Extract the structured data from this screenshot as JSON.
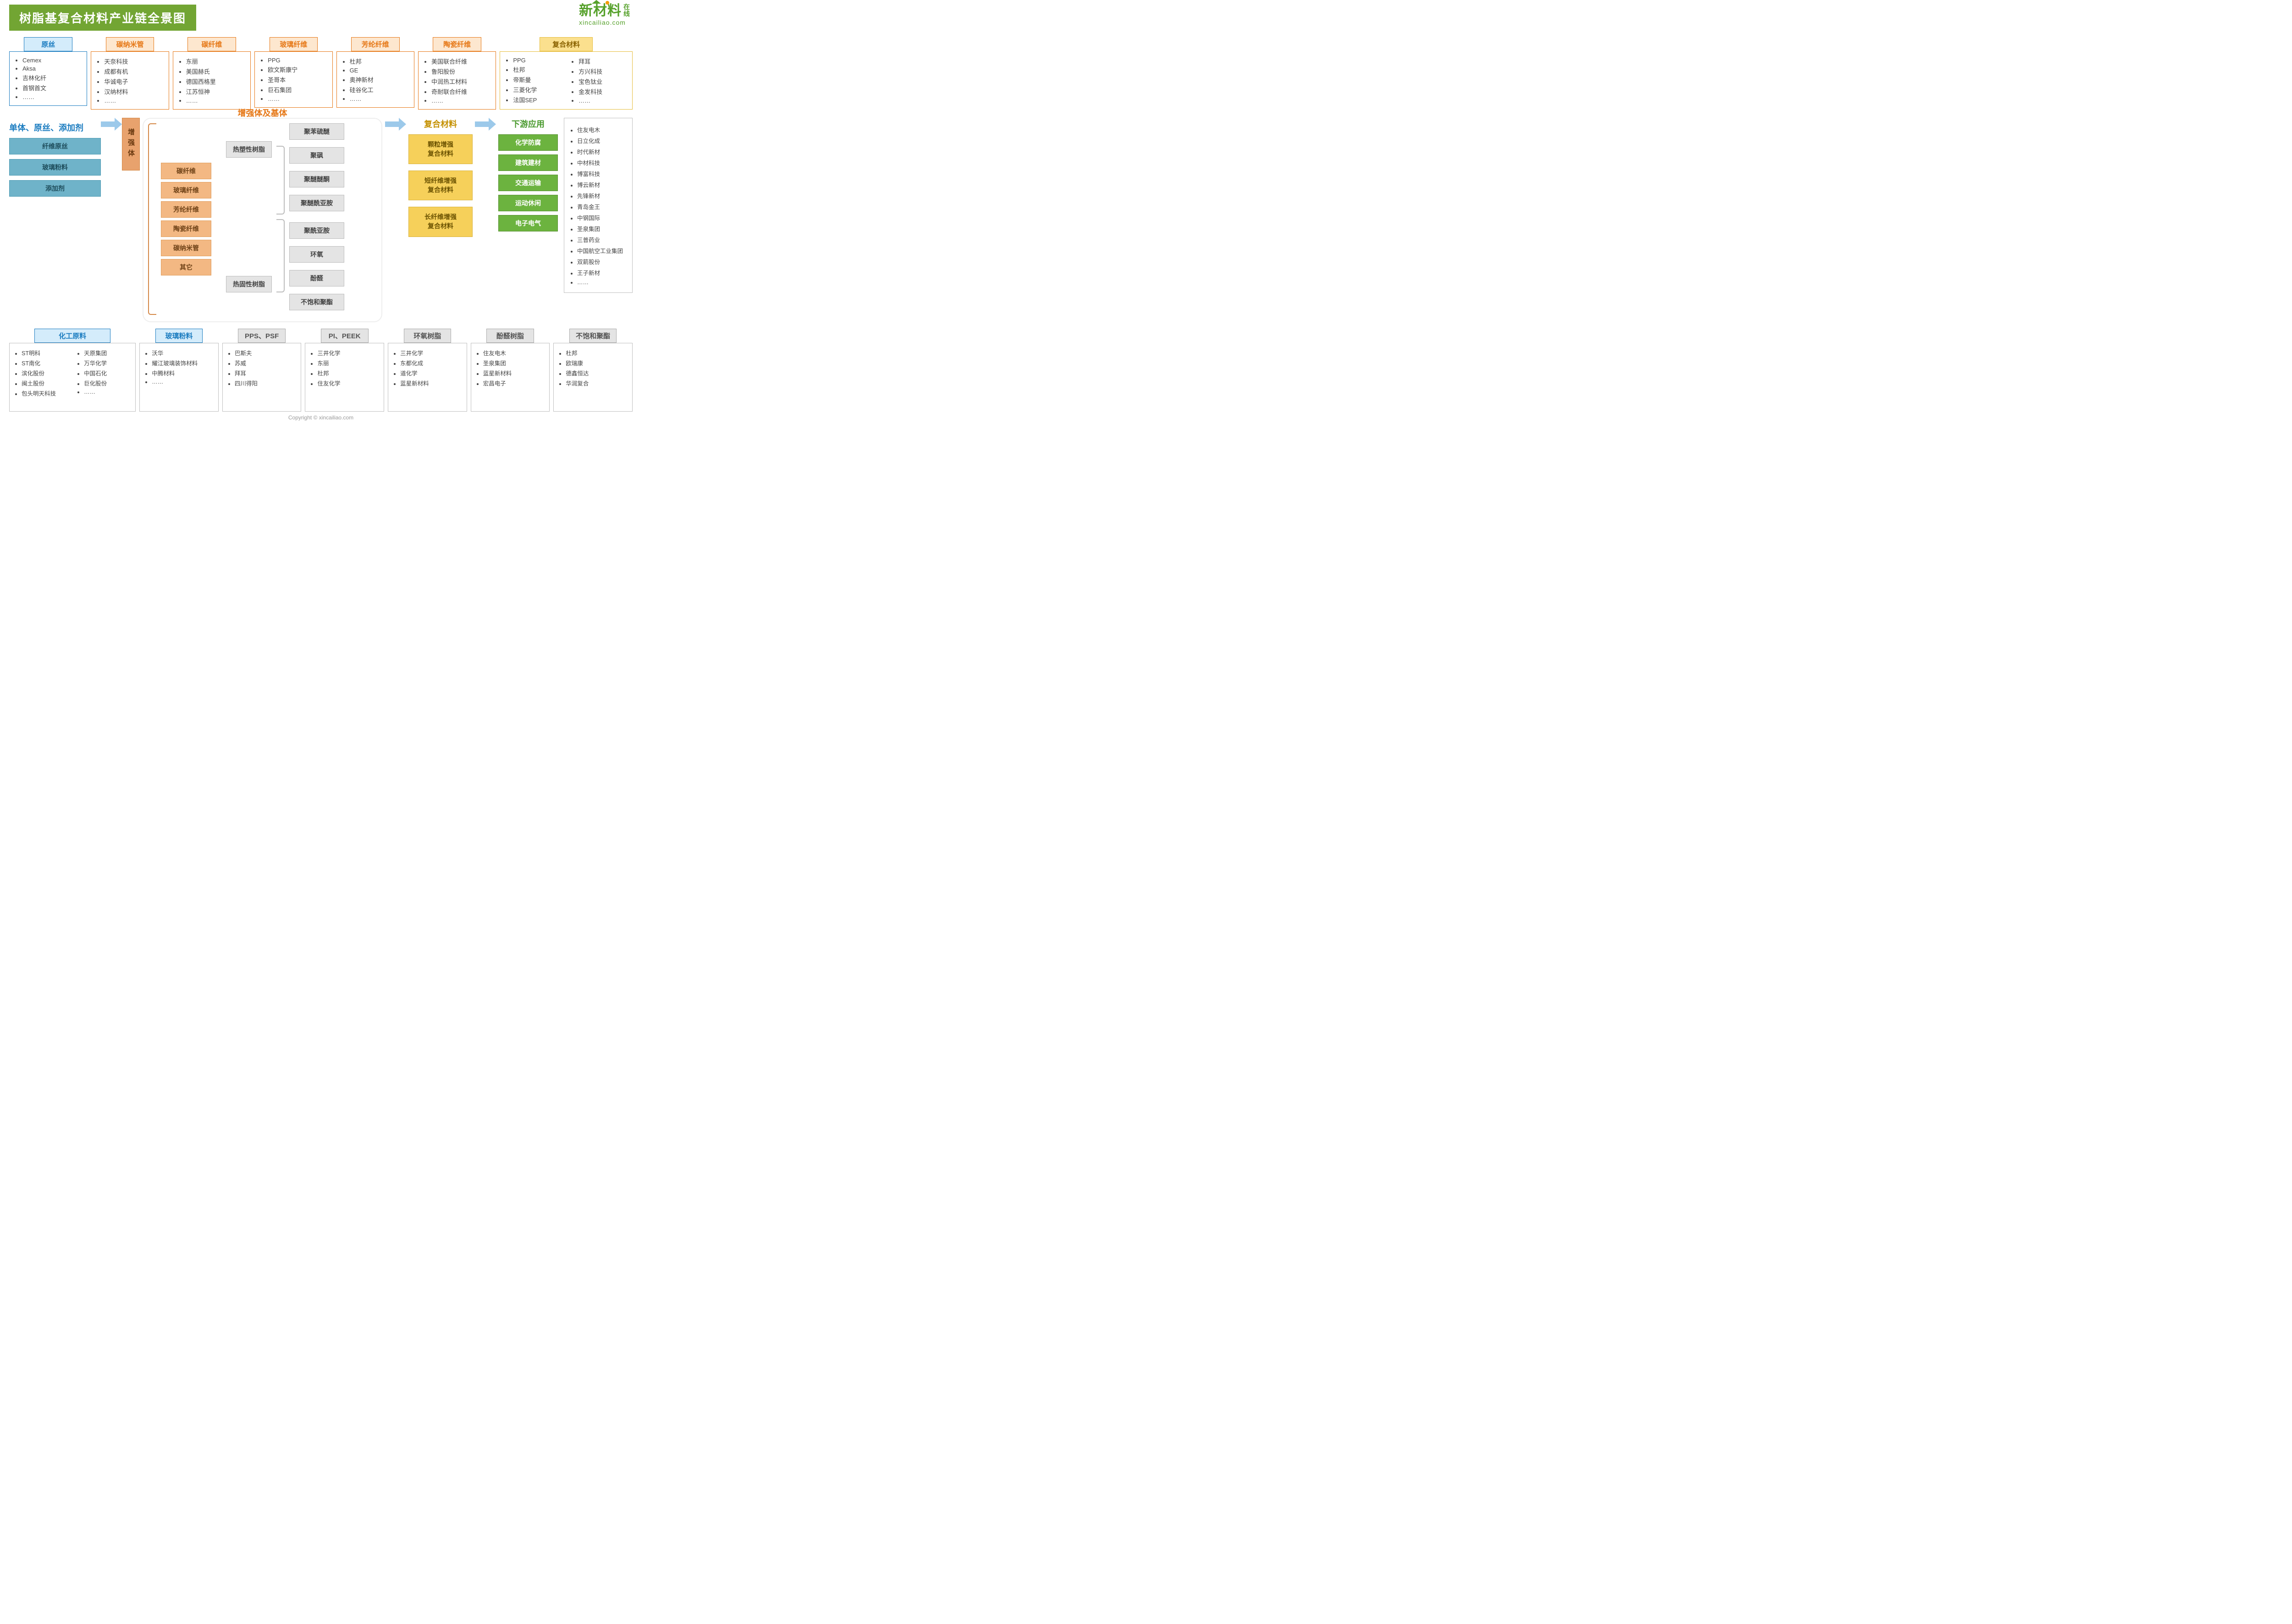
{
  "title": "树脂基复合材料产业链全景图",
  "logo": {
    "brand": "新材料",
    "suffix1": "在",
    "suffix2": "线",
    "domain": "xincailiao.com"
  },
  "copyright": "Copyright © xincailiao.com",
  "colors": {
    "title_bg": "#72a533",
    "blue": "#1b7cc0",
    "orange": "#e67817",
    "yellow": "#e6bd3c",
    "gold": "#c49000",
    "green": "#4a9a2e",
    "chip_teal": "#6fb3c9",
    "chip_tan": "#e8a26d",
    "chip_gray": "#e4e4e4",
    "chip_gold": "#f6d05a",
    "chip_green": "#6cb33f",
    "arrow": "#9cc9ea"
  },
  "top_categories": [
    {
      "name": "原丝",
      "style": "blue",
      "items": [
        "Cemex",
        "Aksa",
        "吉林化纤",
        "首钢首文",
        "……"
      ]
    },
    {
      "name": "碳纳米管",
      "style": "orange",
      "items": [
        "天奈科技",
        "成都有机",
        "华诚电子",
        "汉纳材料",
        "……"
      ]
    },
    {
      "name": "碳纤维",
      "style": "orange",
      "items": [
        "东丽",
        "美国赫氏",
        "德国西格里",
        "江苏恒神",
        "……"
      ]
    },
    {
      "name": "玻璃纤维",
      "style": "orange",
      "items": [
        "PPG",
        "欧文斯康宁",
        "圣哥本",
        "巨石集团",
        "……"
      ]
    },
    {
      "name": "芳纶纤维",
      "style": "orange",
      "items": [
        "杜邦",
        "GE",
        "奥神新材",
        "硅谷化工",
        "……"
      ]
    },
    {
      "name": "陶瓷纤维",
      "style": "orange",
      "items": [
        "美国联合纤维",
        "鲁阳股份",
        "中润热工材料",
        "奇耐联合纤维",
        "……"
      ]
    }
  ],
  "top_composite": {
    "name": "复合材料",
    "style": "yellow",
    "left": [
      "PPG",
      "杜邦",
      "帝斯曼",
      "三菱化学",
      "法国SEP"
    ],
    "right": [
      "拜耳",
      "方兴科技",
      "宝色钛业",
      "金发科技",
      "……"
    ]
  },
  "flow": {
    "left_title": "单体、原丝、添加剂",
    "left_chips": [
      "纤维原丝",
      "玻璃粉料",
      "添加剂"
    ],
    "vertical_label": "增强体",
    "center_title": "增强体及基体",
    "reinforce": [
      "碳纤维",
      "玻璃纤维",
      "芳纶纤维",
      "陶瓷纤维",
      "碳纳米管",
      "其它"
    ],
    "resin_top": "热塑性树脂",
    "resin_bottom": "热固性树脂",
    "poly_top": [
      "聚苯硫醚",
      "聚砜",
      "聚醚醚酮",
      "聚醚酰亚胺"
    ],
    "poly_bottom": [
      "聚酰亚胺",
      "环氧",
      "酚醛",
      "不饱和聚酯"
    ],
    "composite_title": "复合材料",
    "composites": [
      "颗粒增强\n复合材料",
      "短纤维增强\n复合材料",
      "长纤维增强\n复合材料"
    ],
    "downstream_title": "下游应用",
    "downstream": [
      "化学防腐",
      "建筑建材",
      "交通运输",
      "运动休闲",
      "电子电气"
    ]
  },
  "right_list": [
    "住友电木",
    "日立化成",
    "时代新材",
    "中材科技",
    "博富科技",
    "博云新材",
    "先锋新材",
    "青岛金王",
    "中钢国际",
    "圣泉集团",
    "三普药业",
    "中国航空工业集团",
    "双箭股份",
    "王子新材",
    "……"
  ],
  "bottom_categories": [
    {
      "name": "化工原料",
      "style": "blue",
      "two_col": true,
      "left": [
        "ST明科",
        "ST南化",
        "滨化股份",
        "闽土股份",
        "包头明天科技"
      ],
      "right": [
        "天原集团",
        "万华化学",
        "中国石化",
        "巨化股份",
        "……"
      ]
    },
    {
      "name": "玻璃粉料",
      "style": "blue",
      "items": [
        "沃华",
        "耀江玻璃装饰材料",
        "中腾材料",
        "……"
      ]
    },
    {
      "name": "PPS、PSF",
      "style": "gray",
      "items": [
        "巴斯夫",
        "苏威",
        "拜耳",
        "四川得阳"
      ]
    },
    {
      "name": "PI、PEEK",
      "style": "gray",
      "items": [
        "三井化学",
        "东丽",
        "杜邦",
        "住友化学"
      ]
    },
    {
      "name": "环氧树脂",
      "style": "gray",
      "items": [
        "三井化学",
        "东都化成",
        "道化学",
        "蓝星新材料"
      ]
    },
    {
      "name": "酚醛树脂",
      "style": "gray",
      "items": [
        "住友电木",
        "圣泉集团",
        "蓝星新材料",
        "宏昌电子"
      ]
    },
    {
      "name": "不饱和聚酯",
      "style": "gray",
      "items": [
        "杜邦",
        "欧瑞康",
        "德鑫恒达",
        "华润复合"
      ]
    }
  ]
}
